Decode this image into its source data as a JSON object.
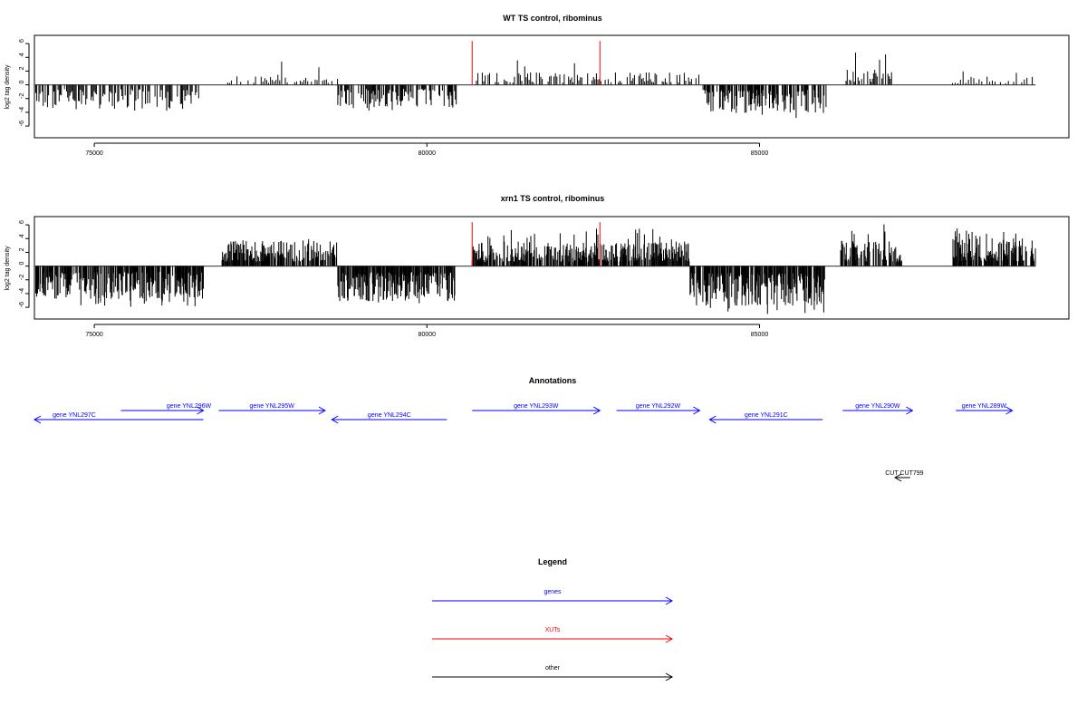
{
  "chart_data": [
    {
      "type": "bar",
      "title": "WT TS control, ribominus",
      "ylabel": "log2 tag density",
      "xlabel": "",
      "xlim": [
        74100,
        89650
      ],
      "ylim": [
        -7.7,
        7.2
      ],
      "x_ticks": [
        75000,
        80000,
        85000
      ],
      "x_tick_labels": [
        "75000",
        "80000",
        "85000"
      ],
      "y_ticks": [
        -6,
        -4,
        -2,
        0,
        2,
        4,
        6
      ],
      "y_tick_labels": [
        "-6",
        "-4",
        "-2",
        "0",
        "2",
        "4",
        "6"
      ],
      "baseline": {
        "x": [
          74100,
          89150
        ],
        "y": 0
      },
      "series": [
        {
          "color": "#000000",
          "segments": [
            {
              "x_start": 74120,
              "x_end": 76640,
              "sign": -1,
              "mean": 2.1,
              "max": 4.0,
              "step": 16
            },
            {
              "x_start": 76920,
              "x_end": 78660,
              "sign": 1,
              "mean": 0.9,
              "max": 3.4,
              "step": 28
            },
            {
              "x_start": 78660,
              "x_end": 80450,
              "sign": -1,
              "mean": 2.0,
              "max": 3.8,
              "step": 13
            },
            {
              "x_start": 80700,
              "x_end": 84100,
              "sign": 1,
              "mean": 1.1,
              "max": 3.6,
              "step": 22
            },
            {
              "x_start": 84150,
              "x_end": 86000,
              "sign": -1,
              "mean": 2.5,
              "max": 5.0,
              "step": 10
            },
            {
              "x_start": 86300,
              "x_end": 87050,
              "sign": 1,
              "mean": 1.4,
              "max": 5.0,
              "step": 18
            },
            {
              "x_start": 87900,
              "x_end": 89150,
              "sign": 1,
              "mean": 0.8,
              "max": 2.3,
              "step": 40
            }
          ]
        },
        {
          "color": "#ff0000",
          "spikes": [
            {
              "x": 80680,
              "y": 6.4
            },
            {
              "x": 82600,
              "y": 6.4
            }
          ]
        }
      ]
    },
    {
      "type": "bar",
      "title": "xrn1 TS control, ribominus",
      "ylabel": "log2 tag density",
      "xlabel": "",
      "xlim": [
        74100,
        89650
      ],
      "ylim": [
        -7.7,
        7.2
      ],
      "x_ticks": [
        75000,
        80000,
        85000
      ],
      "x_tick_labels": [
        "75000",
        "80000",
        "85000"
      ],
      "y_ticks": [
        -6,
        -4,
        -2,
        0,
        2,
        4,
        6
      ],
      "y_tick_labels": [
        "-6",
        "-4",
        "-2",
        "0",
        "2",
        "4",
        "6"
      ],
      "baseline": {
        "x": [
          74100,
          89150
        ],
        "y": 0
      },
      "series": [
        {
          "color": "#000000",
          "segments": [
            {
              "x_start": 74120,
              "x_end": 76640,
              "sign": -1,
              "mean": 2.8,
              "max": 6.0,
              "step": 7
            },
            {
              "x_start": 76920,
              "x_end": 78660,
              "sign": 1,
              "mean": 2.2,
              "max": 4.2,
              "step": 7
            },
            {
              "x_start": 78660,
              "x_end": 80450,
              "sign": -1,
              "mean": 3.0,
              "max": 5.5,
              "step": 6
            },
            {
              "x_start": 80680,
              "x_end": 83950,
              "sign": 1,
              "mean": 2.1,
              "max": 5.5,
              "step": 7
            },
            {
              "x_start": 83950,
              "x_end": 85980,
              "sign": -1,
              "mean": 3.4,
              "max": 7.0,
              "step": 6
            },
            {
              "x_start": 86220,
              "x_end": 87150,
              "sign": 1,
              "mean": 2.2,
              "max": 6.5,
              "step": 7
            },
            {
              "x_start": 87900,
              "x_end": 89150,
              "sign": 1,
              "mean": 2.4,
              "max": 5.8,
              "step": 7
            }
          ]
        },
        {
          "color": "#ff0000",
          "spikes": [
            {
              "x": 80680,
              "y": 6.4
            },
            {
              "x": 82600,
              "y": 6.4
            }
          ]
        }
      ]
    }
  ],
  "annotations": {
    "title": "Annotations",
    "genes": [
      {
        "label": "gene YNL297C",
        "x_start": 74100,
        "x_end": 76640,
        "strand": "-"
      },
      {
        "label": "gene YNL296W",
        "x_start": 75400,
        "x_end": 76640,
        "strand": "+"
      },
      {
        "label": "gene YNL295W",
        "x_start": 76870,
        "x_end": 78470,
        "strand": "+"
      },
      {
        "label": "gene YNL294C",
        "x_start": 78570,
        "x_end": 80300,
        "strand": "-"
      },
      {
        "label": "gene YNL293W",
        "x_start": 80680,
        "x_end": 82600,
        "strand": "+"
      },
      {
        "label": "gene YNL292W",
        "x_start": 82850,
        "x_end": 84100,
        "strand": "+"
      },
      {
        "label": "gene YNL291C",
        "x_start": 84250,
        "x_end": 85950,
        "strand": "-"
      },
      {
        "label": "gene YNL290W",
        "x_start": 86250,
        "x_end": 87300,
        "strand": "+"
      },
      {
        "label": "gene YNL289W",
        "x_start": 87950,
        "x_end": 88800,
        "strand": "+"
      }
    ],
    "other": [
      {
        "label": "CUT CUT799",
        "x_start": 86900,
        "x_end": 87400,
        "strand": "-"
      }
    ]
  },
  "legend": {
    "title": "Legend",
    "items": [
      {
        "label": "genes",
        "color": "#0000ff"
      },
      {
        "label": "XUTs",
        "color": "#ff0000"
      },
      {
        "label": "other",
        "color": "#000000"
      }
    ]
  }
}
